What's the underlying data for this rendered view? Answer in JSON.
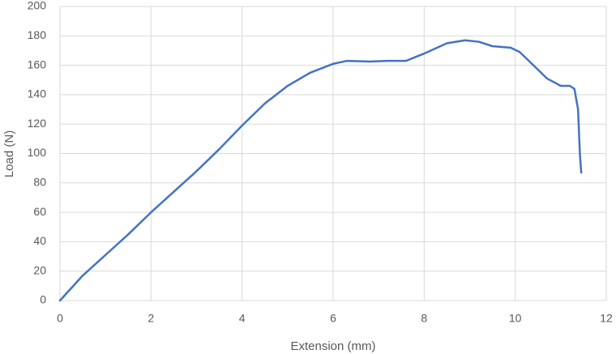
{
  "chart_data": {
    "type": "line",
    "x_label": "Extension (mm)",
    "y_label": "Load (N)",
    "x": [
      0,
      0.5,
      1,
      1.5,
      2,
      2.5,
      3,
      3.5,
      4,
      4.5,
      5,
      5.5,
      6,
      6.3,
      6.8,
      7.2,
      7.6,
      8,
      8.5,
      8.9,
      9.2,
      9.5,
      9.9,
      10.1,
      10.4,
      10.7,
      11,
      11.2,
      11.3,
      11.38,
      11.42,
      11.45
    ],
    "series": [
      {
        "name": "Load",
        "color": "#4472c4",
        "values": [
          0,
          17,
          31,
          45,
          60,
          74,
          88,
          103,
          119,
          134,
          146,
          155,
          161,
          163,
          162.5,
          163,
          163,
          168,
          175,
          177,
          176,
          173,
          172,
          169,
          160,
          151,
          146,
          146,
          144,
          130,
          100,
          87
        ]
      }
    ],
    "xlim": [
      0,
      12
    ],
    "xticks": [
      0,
      2,
      4,
      6,
      8,
      10,
      12
    ],
    "ylim": [
      0,
      200
    ],
    "yticks": [
      0,
      20,
      40,
      60,
      80,
      100,
      120,
      140,
      160,
      180,
      200
    ],
    "grid": true
  }
}
